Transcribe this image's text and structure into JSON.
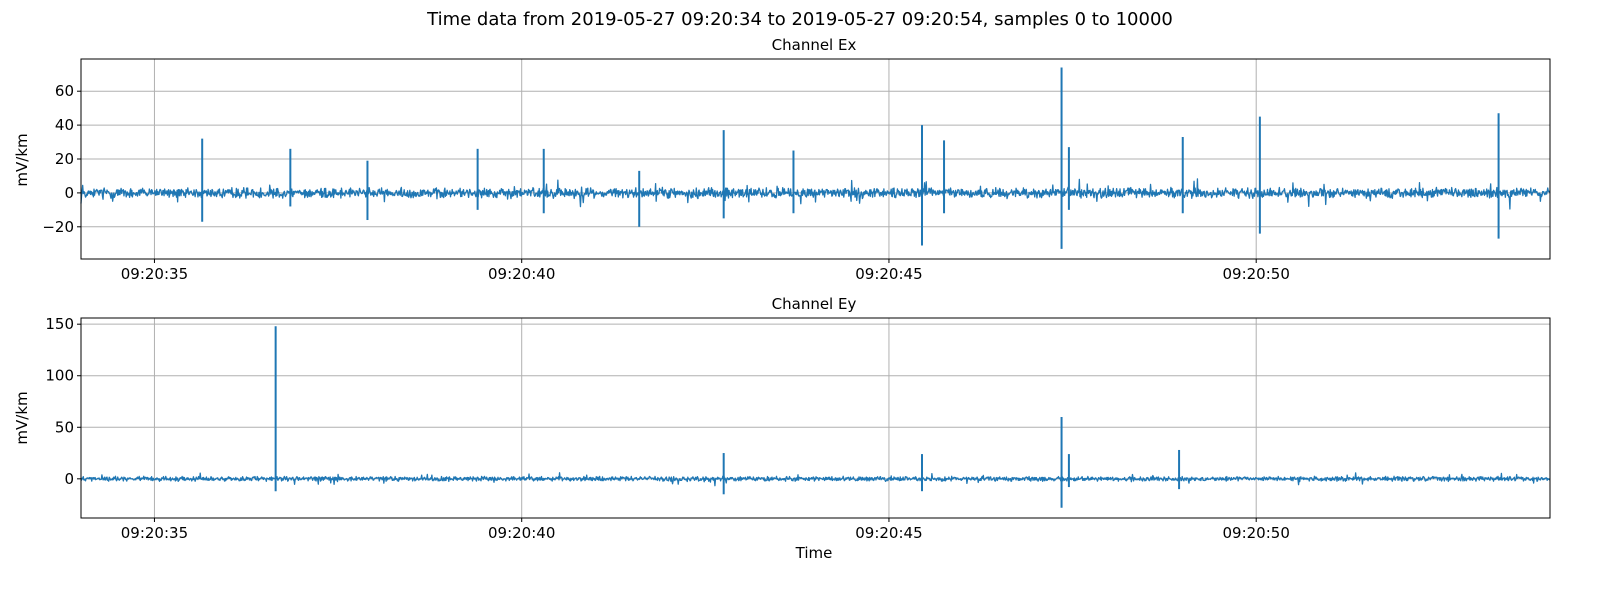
{
  "figure_title": "Time data from 2019-05-27 09:20:34 to 2019-05-27 09:20:54, samples 0 to 10000",
  "colors": {
    "line": "#1f77b4",
    "grid": "#b0b0b0",
    "axes": "#000000",
    "background": "#ffffff"
  },
  "chart_data": [
    {
      "type": "line",
      "title": "Channel Ex",
      "xlabel": "",
      "ylabel": "mV/km",
      "x_range": [
        "09:20:34",
        "09:20:54"
      ],
      "x_ticks": [
        "09:20:35",
        "09:20:40",
        "09:20:45",
        "09:20:50"
      ],
      "ylim": [
        -39,
        79
      ],
      "y_ticks": [
        60,
        40,
        20,
        0,
        -20
      ],
      "y_tick_labels": [
        "60",
        "40",
        "20",
        "0",
        "−20"
      ],
      "grid": true,
      "baseline_noise_amplitude": 4,
      "series": [
        {
          "spikes": [
            {
              "t": "09:20:35.65",
              "min": -17,
              "max": 32
            },
            {
              "t": "09:20:36.85",
              "min": -8,
              "max": 26
            },
            {
              "t": "09:20:37.9",
              "min": -16,
              "max": 19
            },
            {
              "t": "09:20:39.4",
              "min": -10,
              "max": 26
            },
            {
              "t": "09:20:40.3",
              "min": -12,
              "max": 26
            },
            {
              "t": "09:20:41.6",
              "min": -20,
              "max": 13
            },
            {
              "t": "09:20:42.75",
              "min": -15,
              "max": 37
            },
            {
              "t": "09:20:43.7",
              "min": -12,
              "max": 25
            },
            {
              "t": "09:20:45.45",
              "min": -31,
              "max": 40
            },
            {
              "t": "09:20:45.75",
              "min": -12,
              "max": 31
            },
            {
              "t": "09:20:47.35",
              "min": -33,
              "max": 74
            },
            {
              "t": "09:20:47.45",
              "min": -10,
              "max": 27
            },
            {
              "t": "09:20:49.0",
              "min": -12,
              "max": 33
            },
            {
              "t": "09:20:50.05",
              "min": -24,
              "max": 45
            },
            {
              "t": "09:20:53.3",
              "min": -27,
              "max": 47
            }
          ]
        }
      ]
    },
    {
      "type": "line",
      "title": "Channel Ey",
      "xlabel": "Time",
      "ylabel": "mV/km",
      "x_range": [
        "09:20:34",
        "09:20:54"
      ],
      "x_ticks": [
        "09:20:35",
        "09:20:40",
        "09:20:45",
        "09:20:50"
      ],
      "ylim": [
        -38,
        156
      ],
      "y_ticks": [
        150,
        100,
        50,
        0
      ],
      "y_tick_labels": [
        "150",
        "100",
        "50",
        "0"
      ],
      "grid": true,
      "baseline_noise_amplitude": 3,
      "series": [
        {
          "spikes": [
            {
              "t": "09:20:36.65",
              "min": -12,
              "max": 148
            },
            {
              "t": "09:20:42.75",
              "min": -15,
              "max": 25
            },
            {
              "t": "09:20:45.45",
              "min": -12,
              "max": 24
            },
            {
              "t": "09:20:47.35",
              "min": -28,
              "max": 60
            },
            {
              "t": "09:20:47.45",
              "min": -8,
              "max": 24
            },
            {
              "t": "09:20:48.95",
              "min": -10,
              "max": 28
            }
          ]
        }
      ]
    }
  ]
}
